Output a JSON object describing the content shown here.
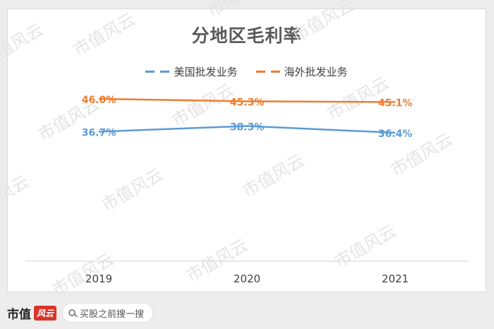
{
  "chart_data": {
    "type": "line",
    "title": "分地区毛利率",
    "categories": [
      "2019",
      "2020",
      "2021"
    ],
    "series": [
      {
        "name": "美国批发业务",
        "values": [
          36.7,
          38.3,
          36.4
        ],
        "labels": [
          "36.7%",
          "38.3%",
          "36.4%"
        ],
        "color": "#5b9bd5"
      },
      {
        "name": "海外批发业务",
        "values": [
          46.0,
          45.3,
          45.1
        ],
        "labels": [
          "46.0%",
          "45.3%",
          "45.1%"
        ],
        "color": "#ed7d31"
      }
    ],
    "ylim": [
      0,
      60
    ],
    "grid": false,
    "legend_position": "top"
  },
  "watermark": "市值风云",
  "footer": {
    "brand": "市值",
    "brand_stamp": "风云",
    "search_placeholder": "买股之前搜一搜"
  }
}
